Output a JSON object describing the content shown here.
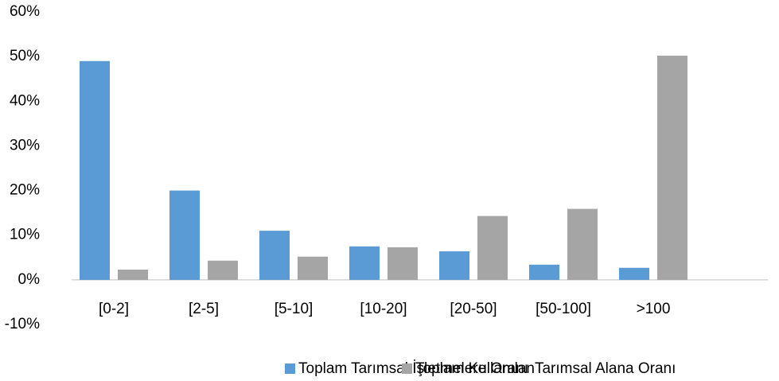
{
  "chart_data": {
    "type": "bar",
    "categories": [
      "[0-2]",
      "[2-5]",
      "[5-10]",
      "[10-20]",
      "[20-50]",
      "[50-100]",
      ">100"
    ],
    "series": [
      {
        "name": "Toplam Tarımsal İşletmelere Oranı",
        "color": "#5b9bd5",
        "values": [
          49,
          20,
          11,
          7.5,
          6.4,
          3.4,
          2.7
        ]
      },
      {
        "name": "Toplam KullanılanTarımsal Alana Oranı",
        "color": "#a5a5a5",
        "values": [
          2.3,
          4.3,
          5.2,
          7.3,
          14.3,
          15.9,
          50.2
        ]
      }
    ],
    "ylim": [
      -10,
      60
    ],
    "yticks": [
      {
        "value": -10,
        "label": "-10%"
      },
      {
        "value": 0,
        "label": "0%"
      },
      {
        "value": 10,
        "label": "10%"
      },
      {
        "value": 20,
        "label": "20%"
      },
      {
        "value": 30,
        "label": "30%"
      },
      {
        "value": 40,
        "label": "40%"
      },
      {
        "value": 50,
        "label": "50%"
      },
      {
        "value": 60,
        "label": "60%"
      }
    ],
    "grid": false,
    "legend": "bottom"
  }
}
